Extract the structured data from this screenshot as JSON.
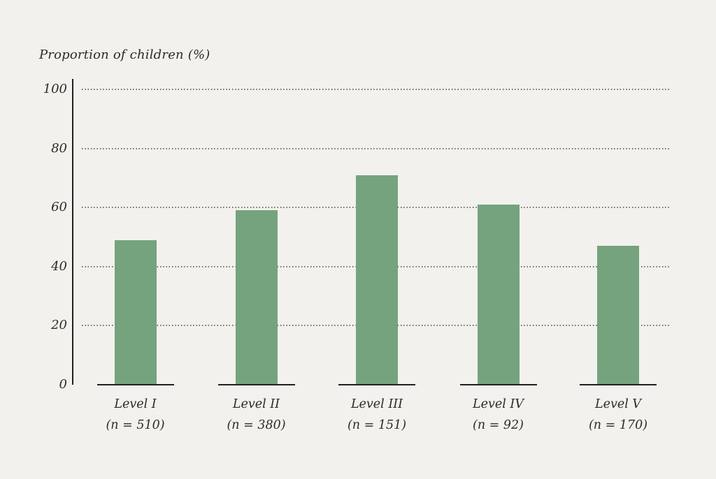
{
  "page": {
    "background_color": "#f2f1ed"
  },
  "chart_data": {
    "type": "bar",
    "title": "Proportion of children (%)",
    "categories": [
      "Level I",
      "Level II",
      "Level III",
      "Level IV",
      "Level V"
    ],
    "n_labels": [
      "(n = 510)",
      "(n = 380)",
      "(n = 151)",
      "(n = 92)",
      "(n = 170)"
    ],
    "n_values": [
      510,
      380,
      151,
      92,
      170
    ],
    "values": [
      49,
      59,
      71,
      61,
      47
    ],
    "ylabel": "Proportion of children (%)",
    "xlabel": "",
    "ylim": [
      0,
      100
    ],
    "yticks": [
      0,
      20,
      40,
      60,
      80,
      100
    ],
    "ytick_labels": [
      "100",
      "80",
      "60",
      "40",
      "20",
      "0"
    ],
    "grid": "horizontal dotted",
    "legend": "none",
    "colors": {
      "bar": "#75a37e",
      "axis": "#21211f",
      "text": "#2d2b27",
      "grid_dot": "#716f6a",
      "background": "#f2f1ed"
    }
  }
}
